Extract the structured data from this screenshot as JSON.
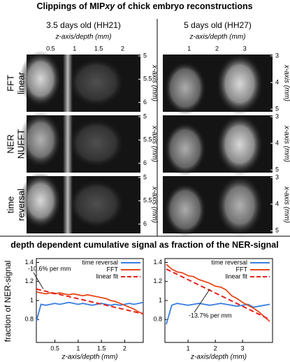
{
  "figure": {
    "title_parts": [
      "Clippings of MIP",
      "xy",
      " of chick embryo reconstructions"
    ],
    "columns": [
      {
        "title": "3.5 days old (HH21)",
        "xlabel": "z-axis/depth (mm)",
        "xlim": [
          0,
          2.37
        ],
        "xticks": [
          0.5,
          1,
          1.5,
          2
        ],
        "ylabel": "x-axis (mm)",
        "ylim": [
          4.97,
          6.2
        ],
        "yticks": [
          5,
          5.5,
          6
        ]
      },
      {
        "title": "5 days old (HH27)",
        "xlabel": "z-axis/depth (mm)",
        "xlim": [
          0.05,
          4
        ],
        "xticks": [
          1,
          2,
          3
        ],
        "ylabel": "x-axis (mm)",
        "ylim": [
          2.95,
          5.1
        ],
        "yticks": [
          3,
          4,
          5
        ]
      }
    ],
    "rows": [
      [
        "FFT",
        "linear"
      ],
      [
        "NER",
        "NUFFT"
      ],
      [
        "time",
        "reversal"
      ]
    ],
    "plots_title": "depth dependent cumulative signal as fraction of the NER-signal",
    "plots_ylabel": "fraction of NER-signal"
  },
  "chart_data": [
    {
      "type": "line",
      "xlabel": "z-axis/depth (mm)",
      "xlim": [
        0.1,
        2.4
      ],
      "xticks": [
        0.5,
        1,
        1.5,
        2
      ],
      "ylim": [
        0.56,
        1.44
      ],
      "yticks": [
        0.8,
        1,
        1.2,
        1.4
      ],
      "annotation": "-10.6% per mm",
      "series": [
        {
          "name": "time reversal",
          "color": "#3a7fe0",
          "style": "solid",
          "x": [
            0.1,
            0.2,
            0.3,
            0.4,
            0.5,
            0.6,
            0.7,
            0.8,
            0.9,
            1.0,
            1.1,
            1.2,
            1.3,
            1.4,
            1.5,
            1.6,
            1.7,
            1.8,
            1.9,
            2.0,
            2.1,
            2.2,
            2.3,
            2.4
          ],
          "values": [
            0.78,
            0.96,
            0.95,
            0.96,
            0.97,
            0.96,
            0.97,
            0.98,
            0.97,
            0.96,
            0.97,
            0.96,
            0.95,
            0.96,
            0.97,
            0.96,
            0.95,
            0.96,
            0.95,
            0.96,
            0.97,
            0.96,
            0.97,
            0.98
          ]
        },
        {
          "name": "FFT",
          "color": "#e8481c",
          "style": "solid",
          "x": [
            0.1,
            0.2,
            0.3,
            0.4,
            0.5,
            0.6,
            0.7,
            0.8,
            0.9,
            1.0,
            1.1,
            1.2,
            1.3,
            1.4,
            1.5,
            1.6,
            1.7,
            1.8,
            1.9,
            2.0,
            2.1,
            2.2,
            2.3,
            2.4
          ],
          "values": [
            1.09,
            1.08,
            1.07,
            1.08,
            1.07,
            1.08,
            1.07,
            1.06,
            1.07,
            1.06,
            1.05,
            1.06,
            1.05,
            1.04,
            1.03,
            1.02,
            1.0,
            0.99,
            0.97,
            0.95,
            0.93,
            0.91,
            0.88,
            0.86
          ]
        },
        {
          "name": "linear fit",
          "color": "#e8201c",
          "style": "dashed",
          "x": [
            0.1,
            2.4
          ],
          "values": [
            1.12,
            0.86
          ]
        }
      ]
    },
    {
      "type": "line",
      "xlabel": "z-axis/depth (mm)",
      "xlim": [
        0.15,
        4.1
      ],
      "xticks": [
        1,
        2,
        3
      ],
      "ylim": [
        0.56,
        1.44
      ],
      "yticks": [
        0.8,
        1,
        1.2,
        1.4
      ],
      "annotation": "-13.7% per mm",
      "series": [
        {
          "name": "time reversal",
          "color": "#3a7fe0",
          "style": "solid",
          "x": [
            0.2,
            0.4,
            0.6,
            0.8,
            1.0,
            1.2,
            1.4,
            1.6,
            1.8,
            2.0,
            2.2,
            2.4,
            2.6,
            2.8,
            3.0,
            3.2,
            3.4,
            3.6,
            3.8,
            4.0
          ],
          "values": [
            0.75,
            0.95,
            0.97,
            0.96,
            0.95,
            0.96,
            0.97,
            0.96,
            0.95,
            0.96,
            0.97,
            0.96,
            0.95,
            0.94,
            0.95,
            0.96,
            0.93,
            0.94,
            0.95,
            0.96
          ]
        },
        {
          "name": "FFT",
          "color": "#e8481c",
          "style": "solid",
          "x": [
            0.2,
            0.4,
            0.6,
            0.8,
            1.0,
            1.2,
            1.4,
            1.6,
            1.8,
            2.0,
            2.2,
            2.4,
            2.6,
            2.8,
            3.0,
            3.2,
            3.4,
            3.6,
            3.8,
            4.0
          ],
          "values": [
            1.38,
            1.33,
            1.3,
            1.29,
            1.26,
            1.25,
            1.22,
            1.2,
            1.18,
            1.15,
            1.14,
            1.11,
            1.05,
            1.02,
            0.98,
            0.95,
            0.92,
            0.88,
            0.83,
            0.78
          ]
        },
        {
          "name": "linear fit",
          "color": "#e8201c",
          "style": "dashed",
          "x": [
            0.2,
            4.0
          ],
          "values": [
            1.33,
            0.8
          ]
        }
      ]
    }
  ]
}
